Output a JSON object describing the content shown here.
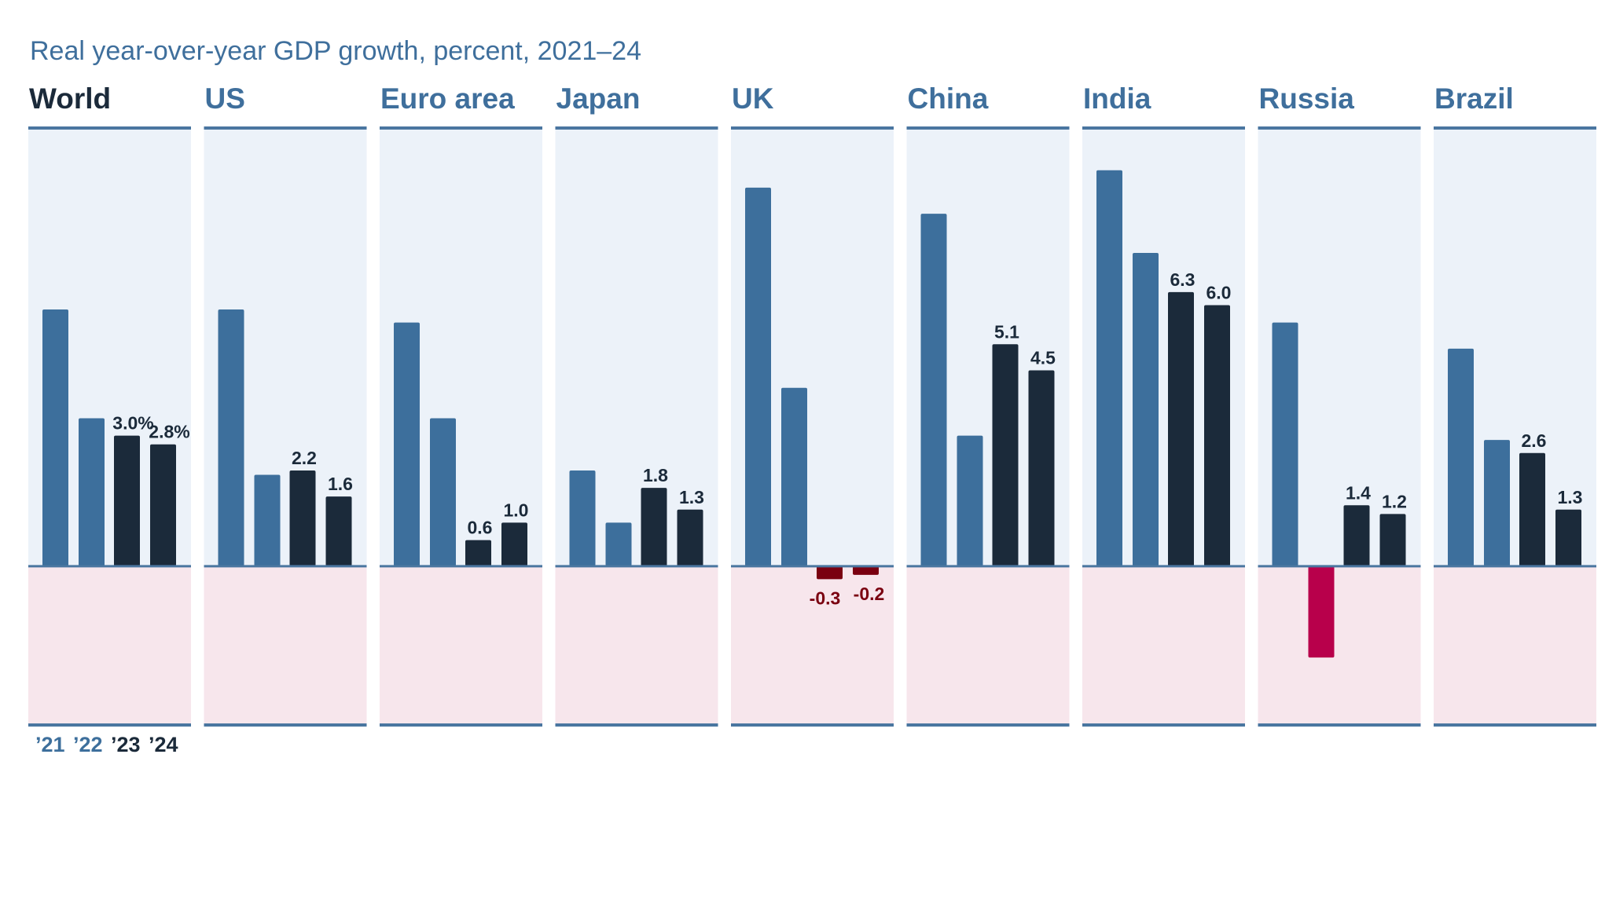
{
  "chart_data": {
    "type": "bar",
    "title": "Real year-over-year GDP growth, percent, 2021–24",
    "categories": [
      "’21",
      "’22",
      "’23",
      "’24"
    ],
    "ylim": [
      -3.65,
      10.07
    ],
    "grid": false,
    "colors": {
      "actual": "#3d6f9c",
      "forecast": "#1b2a3a",
      "forecast_negative": "#7a0010",
      "actual_negative": "#b8004b",
      "panel_positive_bg": "#ecf2f9",
      "panel_negative_bg": "#f7e6ec",
      "rule": "#4a76a0"
    },
    "panels": [
      {
        "name": "World",
        "values": [
          5.9,
          3.4,
          3.0,
          2.8
        ],
        "labels": [
          "",
          "",
          "3.0%",
          "2.8%"
        ]
      },
      {
        "name": "US",
        "values": [
          5.9,
          2.1,
          2.2,
          1.6
        ],
        "labels": [
          "",
          "",
          "2.2",
          "1.6"
        ]
      },
      {
        "name": "Euro area",
        "values": [
          5.6,
          3.4,
          0.6,
          1.0
        ],
        "labels": [
          "",
          "",
          "0.6",
          "1.0"
        ]
      },
      {
        "name": "Japan",
        "values": [
          2.2,
          1.0,
          1.8,
          1.3
        ],
        "labels": [
          "",
          "",
          "1.8",
          "1.3"
        ]
      },
      {
        "name": "UK",
        "values": [
          8.7,
          4.1,
          -0.3,
          -0.2
        ],
        "labels": [
          "",
          "",
          "-0.3",
          "-0.2"
        ]
      },
      {
        "name": "China",
        "values": [
          8.1,
          3.0,
          5.1,
          4.5
        ],
        "labels": [
          "",
          "",
          "5.1",
          "4.5"
        ]
      },
      {
        "name": "India",
        "values": [
          9.1,
          7.2,
          6.3,
          6.0
        ],
        "labels": [
          "",
          "",
          "6.3",
          "6.0"
        ]
      },
      {
        "name": "Russia",
        "values": [
          5.6,
          -2.1,
          1.4,
          1.2
        ],
        "labels": [
          "",
          "",
          "1.4",
          "1.2"
        ]
      },
      {
        "name": "Brazil",
        "values": [
          5.0,
          2.9,
          2.6,
          1.3
        ],
        "labels": [
          "",
          "",
          "2.6",
          "1.3"
        ]
      }
    ]
  }
}
